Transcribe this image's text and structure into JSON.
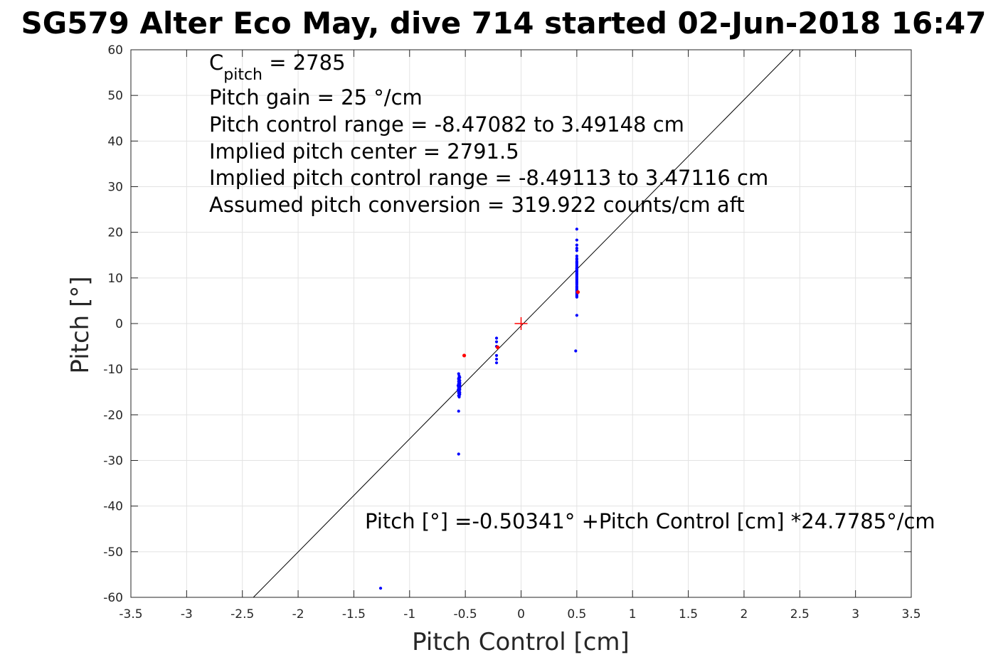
{
  "chart_data": {
    "type": "scatter",
    "title": "SG579 Alter Eco May, dive 714 started 02-Jun-2018 16:47",
    "xlabel": "Pitch Control [cm]",
    "ylabel": "Pitch [°]",
    "xlim": [
      -3.5,
      3.5
    ],
    "ylim": [
      -60,
      60
    ],
    "xticks": [
      -3.5,
      -3,
      -2.5,
      -2,
      -1.5,
      -1,
      -0.5,
      0,
      0.5,
      1,
      1.5,
      2,
      2.5,
      3,
      3.5
    ],
    "xtick_labels": [
      "-3.5",
      "-3",
      "-2.5",
      "-2",
      "-1.5",
      "-1",
      "-0.5",
      "0",
      "0.5",
      "1",
      "1.5",
      "2",
      "2.5",
      "3",
      "3.5"
    ],
    "yticks": [
      60,
      50,
      40,
      30,
      20,
      10,
      0,
      -10,
      -20,
      -30,
      -40,
      -50,
      -60
    ],
    "ytick_labels": [
      "60",
      "50",
      "40",
      "30",
      "20",
      "10",
      "0",
      "-10",
      "-20",
      "-30",
      "-40",
      "-50",
      "-60"
    ],
    "grid": true,
    "series": [
      {
        "color": "#0000ff",
        "marker": "dot",
        "x": [
          -0.56,
          -0.555,
          -0.55,
          -0.56,
          -0.555,
          -0.55,
          -0.56,
          -0.555,
          -0.55,
          -0.56,
          -0.555,
          -0.55,
          -0.565,
          -0.56,
          -0.555,
          -0.55,
          -0.56,
          -0.555,
          -0.55,
          -0.565,
          -0.56,
          -0.555,
          -0.55,
          -0.56,
          -0.555,
          -0.55,
          -0.56,
          -0.555,
          -0.55,
          -0.56,
          -0.555,
          -0.55,
          -0.56,
          -0.555,
          -0.555,
          -0.56,
          -0.56,
          -1.26,
          -0.22,
          -0.22,
          -0.22,
          -0.22,
          -0.22,
          -0.22,
          0.5,
          0.5,
          0.5,
          0.5,
          0.5,
          0.5,
          0.5,
          0.5,
          0.5,
          0.5,
          0.5,
          0.5,
          0.5,
          0.5,
          0.5,
          0.5,
          0.5,
          0.5,
          0.5,
          0.5,
          0.5,
          0.5,
          0.5,
          0.5,
          0.5,
          0.5,
          0.5,
          0.5,
          0.5,
          0.5,
          0.5,
          0.5,
          0.5,
          0.5,
          0.5,
          0.5,
          0.5,
          0.5,
          0.5,
          0.5,
          0.49
        ],
        "y": [
          -11,
          -11.5,
          -11.8,
          -12,
          -12.3,
          -12.5,
          -12.7,
          -12.9,
          -13,
          -13.2,
          -13.4,
          -13.5,
          -13.6,
          -13.8,
          -14,
          -14.1,
          -14.2,
          -14.4,
          -14.5,
          -14.6,
          -14.8,
          -15,
          -15.1,
          -15.2,
          -15.4,
          -15.5,
          -12.2,
          -12.8,
          -13.1,
          -13.9,
          -14.3,
          -13.7,
          -15.8,
          -16.1,
          -15.9,
          -19.2,
          -28.6,
          -58.0,
          -3.2,
          -4.0,
          -5.0,
          -7.0,
          -7.8,
          -8.6,
          20.7,
          18.3,
          17.2,
          16.5,
          16.0,
          14.8,
          14.3,
          14.0,
          13.6,
          13.2,
          12.9,
          12.6,
          12.3,
          12.0,
          11.8,
          11.6,
          11.3,
          11.0,
          10.7,
          10.4,
          10.1,
          9.8,
          9.5,
          9.2,
          8.9,
          8.6,
          8.2,
          7.9,
          7.6,
          7.3,
          7.0,
          6.7,
          6.4,
          6.1,
          5.8,
          13.4,
          12.1,
          11.4,
          10.9,
          1.8,
          -6.0
        ]
      },
      {
        "color": "#ff0000",
        "marker": "dot",
        "x": [
          -0.51,
          -0.21,
          0.51
        ],
        "y": [
          -7.0,
          -5.2,
          6.9
        ]
      },
      {
        "color": "#ff0000",
        "marker": "plus",
        "x": [
          0
        ],
        "y": [
          0
        ]
      }
    ],
    "fit_line": {
      "color": "#000000",
      "intercept": -0.50341,
      "slope": 24.7785
    },
    "annotations": {
      "cpitch_main": "C",
      "cpitch_sub": "pitch",
      "cpitch_value": " = 2785",
      "lines": [
        "Pitch gain = 25 °/cm",
        "Pitch control range = -8.47082 to 3.49148 cm",
        "Implied pitch center = 2791.5",
        "Implied pitch control range = -8.49113 to 3.47116 cm",
        "Assumed pitch conversion = 319.922 counts/cm aft"
      ],
      "equation": "Pitch [°] =-0.50341° +Pitch Control [cm] *24.7785°/cm"
    }
  }
}
